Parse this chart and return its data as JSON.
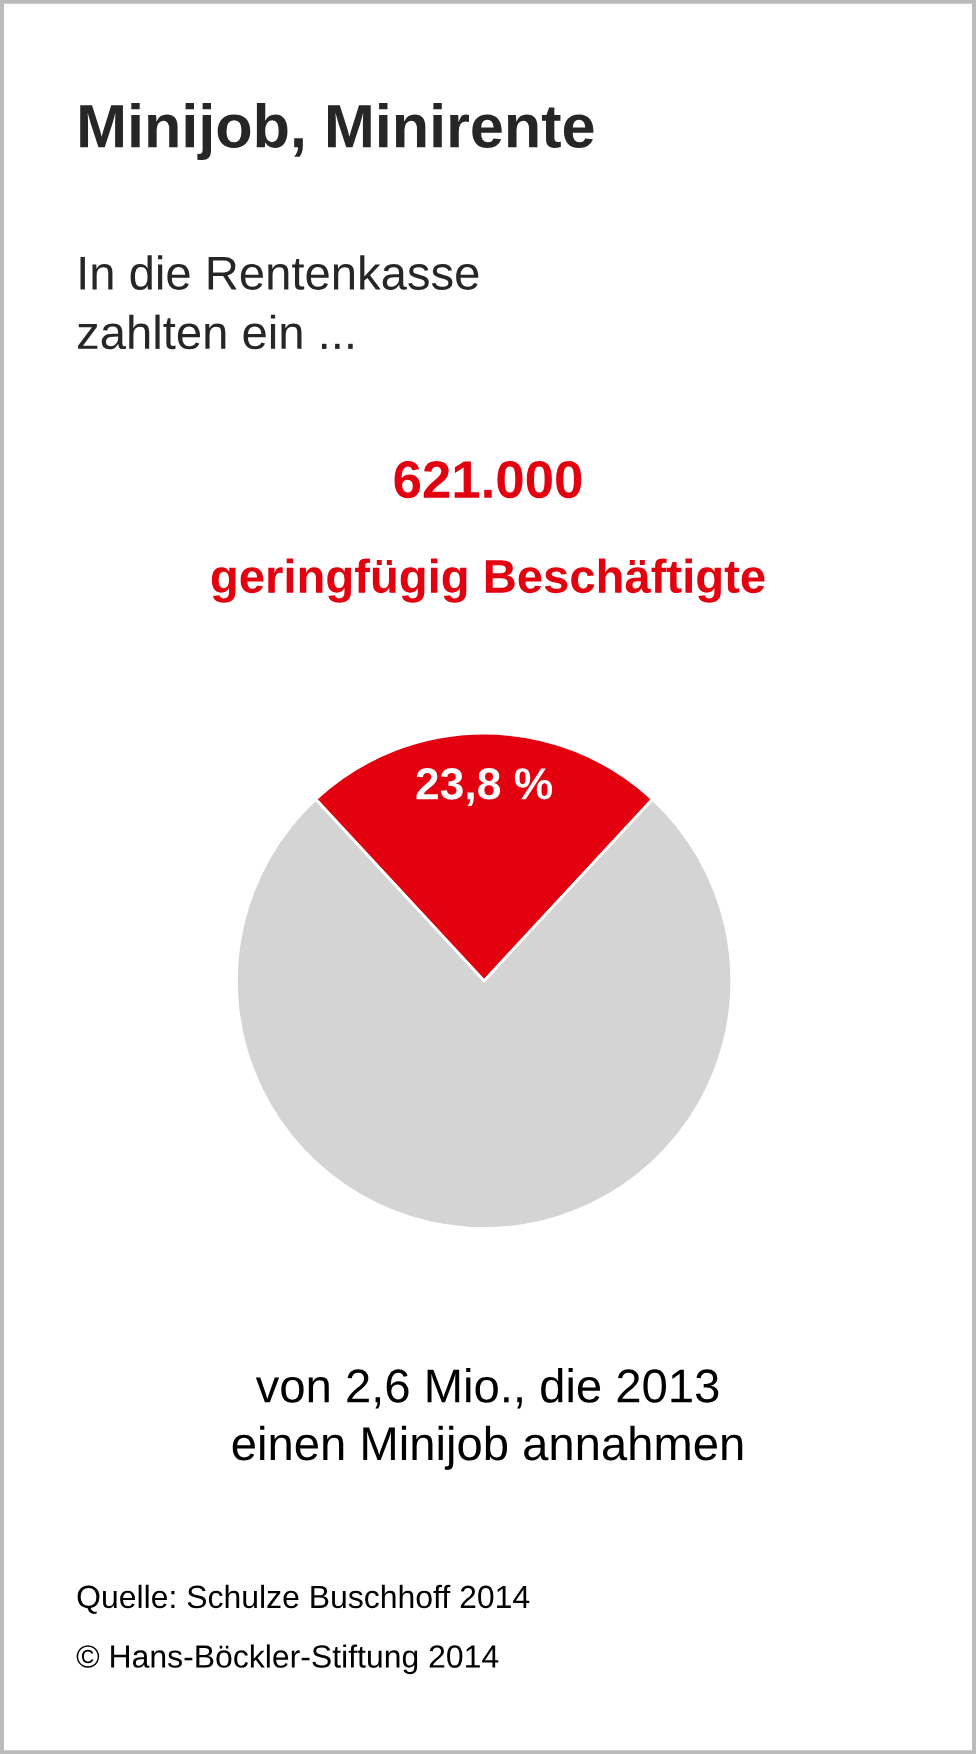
{
  "chart_data": {
    "type": "pie",
    "title": "Minijob, Minirente",
    "subtitle": "In die Rentenkasse\nzahlten ein ...",
    "categories": [
      null,
      null
    ],
    "values": [
      23.8,
      76.2
    ],
    "colors": [
      "#e3000f",
      "#d4d4d4"
    ],
    "value_labels": [
      "23,8 %",
      null
    ],
    "annotations": [
      "621.000",
      "geringfügig Beschäftigte",
      "von 2,6 Mio., die 2013\neinen Minijob annahmen",
      "Quelle: Schulze Buschhoff 2014",
      "© Hans-Böckler-Stiftung 2014"
    ]
  }
}
